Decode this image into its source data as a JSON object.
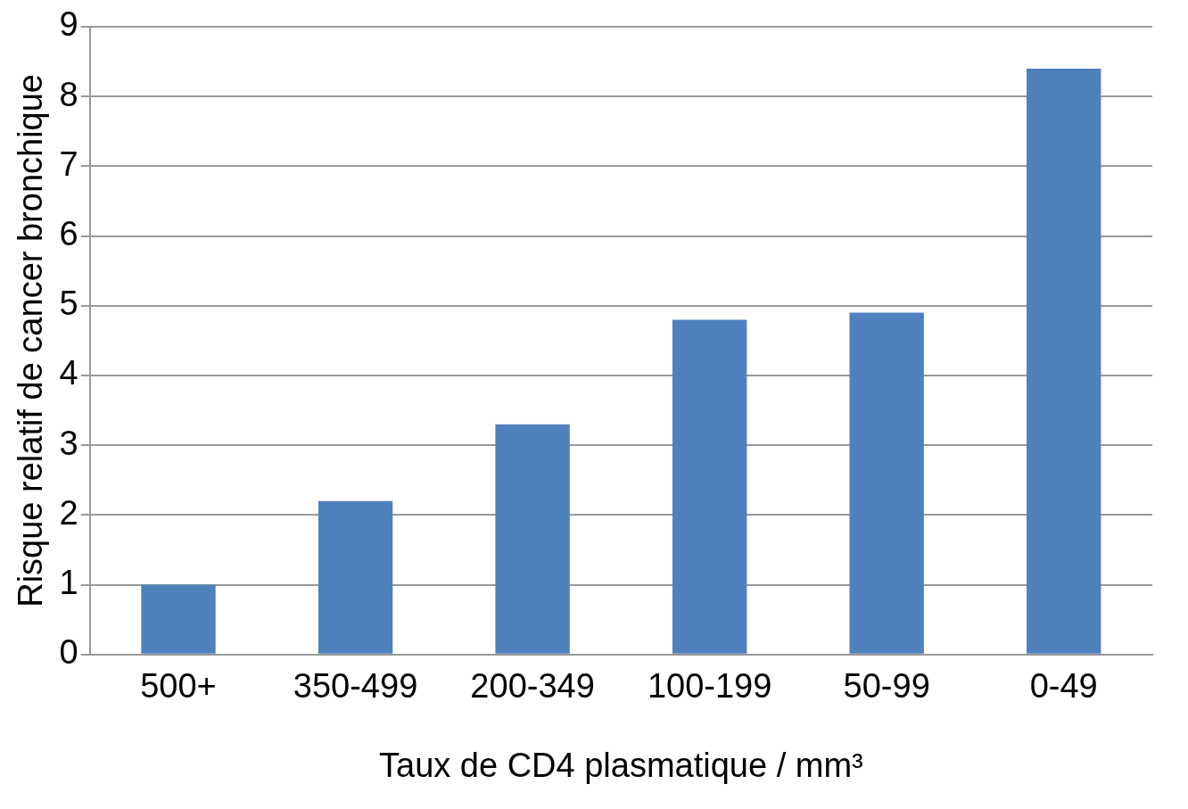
{
  "chart_data": {
    "type": "bar",
    "xlabel": "Taux de CD4 plasmatique / mm³",
    "ylabel": "Risque relatif de cancer bronchique",
    "categories": [
      "500+",
      "350-499",
      "200-349",
      "100-199",
      "50-99",
      "0-49"
    ],
    "values": [
      1,
      2.2,
      3.3,
      4.8,
      4.9,
      8.4
    ],
    "color": "#4f81bd",
    "ylim": [
      0,
      9
    ],
    "yticks": [
      0,
      1,
      2,
      3,
      4,
      5,
      6,
      7,
      8,
      9
    ],
    "grid": "y"
  }
}
